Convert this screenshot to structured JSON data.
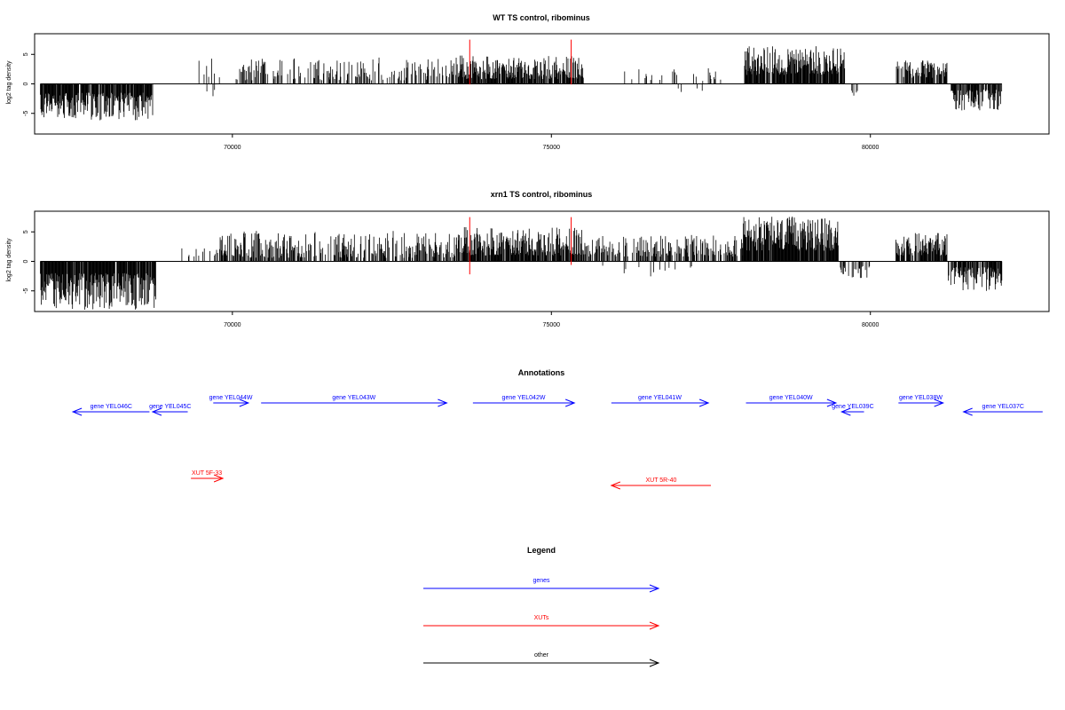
{
  "chart_data": [
    {
      "type": "bar",
      "title": "WT TS control, ribominus",
      "ylabel": "log2 tag density",
      "xlabel": "",
      "xlim": [
        66900,
        82800
      ],
      "ylim": [
        -8.5,
        8.5
      ],
      "x_ticks": [
        70000,
        75000,
        80000
      ],
      "x_tick_labels": [
        "70000",
        "75000",
        "80000"
      ],
      "y_ticks": [
        -5,
        0,
        5
      ],
      "y_tick_labels": [
        "-5",
        "0",
        "5"
      ],
      "grid": false,
      "markers": [
        {
          "x": 73720,
          "y0": -0.1,
          "y1": 7.5,
          "color": "#ff0000"
        },
        {
          "x": 75310,
          "y0": -0.1,
          "y1": 7.5,
          "color": "#ff0000"
        }
      ],
      "segments": [
        {
          "start": 66990,
          "end": 68750,
          "min": 1.5,
          "max": 6.2,
          "sign": -1,
          "density": 0.9
        },
        {
          "start": 69300,
          "end": 69800,
          "min": 1.0,
          "max": 5.3,
          "sign": 1,
          "density": 0.15
        },
        {
          "start": 69600,
          "end": 69900,
          "min": 1.0,
          "max": 2.2,
          "sign": -1,
          "density": 0.08
        },
        {
          "start": 70050,
          "end": 73500,
          "min": 0.6,
          "max": 4.5,
          "sign": 1,
          "density": 0.35
        },
        {
          "start": 73500,
          "end": 75500,
          "min": 0.8,
          "max": 4.8,
          "sign": 1,
          "density": 0.8
        },
        {
          "start": 76100,
          "end": 77700,
          "min": 0.5,
          "max": 2.8,
          "sign": 1,
          "density": 0.12
        },
        {
          "start": 76900,
          "end": 77400,
          "min": 0.6,
          "max": 1.8,
          "sign": -1,
          "density": 0.06
        },
        {
          "start": 78020,
          "end": 79600,
          "min": 1.5,
          "max": 6.4,
          "sign": 1,
          "density": 0.9
        },
        {
          "start": 79700,
          "end": 79800,
          "min": 1.0,
          "max": 2.2,
          "sign": -1,
          "density": 0.3
        },
        {
          "start": 80400,
          "end": 81200,
          "min": 1.0,
          "max": 4.0,
          "sign": 1,
          "density": 0.7
        },
        {
          "start": 81250,
          "end": 82060,
          "min": 1.0,
          "max": 4.5,
          "sign": -1,
          "density": 0.8
        }
      ]
    },
    {
      "type": "bar",
      "title": "xrn1 TS control, ribominus",
      "ylabel": "log2 tag density",
      "xlabel": "",
      "xlim": [
        66900,
        82800
      ],
      "ylim": [
        -8.5,
        8.5
      ],
      "x_ticks": [
        70000,
        75000,
        80000
      ],
      "x_tick_labels": [
        "70000",
        "75000",
        "80000"
      ],
      "y_ticks": [
        -5,
        0,
        5
      ],
      "y_tick_labels": [
        "-5",
        "0",
        "5"
      ],
      "grid": false,
      "markers": [
        {
          "x": 73720,
          "y0": -2.2,
          "y1": 7.5,
          "color": "#ff0000"
        },
        {
          "x": 75310,
          "y0": -0.6,
          "y1": 7.5,
          "color": "#ff0000"
        }
      ],
      "segments": [
        {
          "start": 66990,
          "end": 68800,
          "min": 2.0,
          "max": 8.2,
          "sign": -1,
          "density": 0.95
        },
        {
          "start": 69200,
          "end": 69800,
          "min": 0.8,
          "max": 2.2,
          "sign": 1,
          "density": 0.1
        },
        {
          "start": 69800,
          "end": 73500,
          "min": 0.6,
          "max": 5.2,
          "sign": 1,
          "density": 0.55
        },
        {
          "start": 73500,
          "end": 75500,
          "min": 1.0,
          "max": 5.8,
          "sign": 1,
          "density": 0.85
        },
        {
          "start": 75500,
          "end": 78000,
          "min": 0.8,
          "max": 4.5,
          "sign": 1,
          "density": 0.5
        },
        {
          "start": 75700,
          "end": 77500,
          "min": 0.6,
          "max": 2.6,
          "sign": -1,
          "density": 0.1
        },
        {
          "start": 78000,
          "end": 79500,
          "min": 1.8,
          "max": 7.6,
          "sign": 1,
          "density": 0.95
        },
        {
          "start": 79530,
          "end": 80000,
          "min": 0.8,
          "max": 3.0,
          "sign": -1,
          "density": 0.45
        },
        {
          "start": 80400,
          "end": 81200,
          "min": 1.0,
          "max": 4.8,
          "sign": 1,
          "density": 0.85
        },
        {
          "start": 81220,
          "end": 82060,
          "min": 1.0,
          "max": 5.0,
          "sign": -1,
          "density": 0.85
        }
      ]
    }
  ],
  "annotations": {
    "title": "Annotations",
    "genes_color": "#0000ff",
    "xuts_color": "#ff0000",
    "items": [
      {
        "label": "gene YEL046C",
        "start": 67500,
        "end": 68700,
        "strand": "-",
        "type": "gene",
        "row": 1
      },
      {
        "label": "gene YEL045C",
        "start": 68750,
        "end": 69300,
        "strand": "-",
        "type": "gene",
        "row": 1
      },
      {
        "label": "gene YEL044W",
        "start": 69700,
        "end": 70250,
        "strand": "+",
        "type": "gene",
        "row": 0
      },
      {
        "label": "gene YEL043W",
        "start": 70450,
        "end": 73360,
        "strand": "+",
        "type": "gene",
        "row": 0
      },
      {
        "label": "gene YEL042W",
        "start": 73770,
        "end": 75360,
        "strand": "+",
        "type": "gene",
        "row": 0
      },
      {
        "label": "gene YEL041W",
        "start": 75940,
        "end": 77460,
        "strand": "+",
        "type": "gene",
        "row": 0
      },
      {
        "label": "gene YEL040W",
        "start": 78050,
        "end": 79460,
        "strand": "+",
        "type": "gene",
        "row": 0
      },
      {
        "label": "gene YEL039C",
        "start": 79550,
        "end": 79900,
        "strand": "-",
        "type": "gene",
        "row": 1
      },
      {
        "label": "gene YEL038W",
        "start": 80440,
        "end": 81140,
        "strand": "+",
        "type": "gene",
        "row": 0
      },
      {
        "label": "gene YEL037C",
        "start": 81460,
        "end": 82700,
        "strand": "-",
        "type": "gene",
        "row": 1
      },
      {
        "label": "XUT 5F-33",
        "start": 69350,
        "end": 69850,
        "strand": "+",
        "type": "xut",
        "row": 2
      },
      {
        "label": "XUT 5R-40",
        "start": 75940,
        "end": 77500,
        "strand": "-",
        "type": "xut",
        "row": 3
      }
    ]
  },
  "legend": {
    "title": "Legend",
    "items": [
      {
        "label": "genes",
        "color": "#0000ff"
      },
      {
        "label": "XUTs",
        "color": "#ff0000"
      },
      {
        "label": "other",
        "color": "#000000"
      }
    ]
  }
}
